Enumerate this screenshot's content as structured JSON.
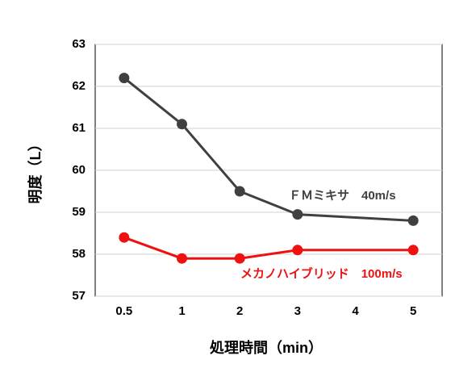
{
  "chart_data": {
    "type": "line",
    "x_label": "処理時間（min）",
    "y_label": "明度（L）",
    "categories": [
      "0.5",
      "1",
      "2",
      "3",
      "4",
      "5"
    ],
    "series": [
      {
        "name": "ＦＭミキサ　40m/s",
        "color": "#404040",
        "values": [
          62.2,
          61.1,
          59.5,
          58.95,
          null,
          58.8
        ]
      },
      {
        "name": "メカノハイブリッド　100m/s",
        "color": "#ee1111",
        "values": [
          58.4,
          57.9,
          57.9,
          58.1,
          null,
          58.1
        ]
      }
    ],
    "connect_gaps": true,
    "ylim": [
      57,
      63
    ],
    "yticks": [
      57,
      58,
      59,
      60,
      61,
      62,
      63
    ],
    "grid": true
  }
}
